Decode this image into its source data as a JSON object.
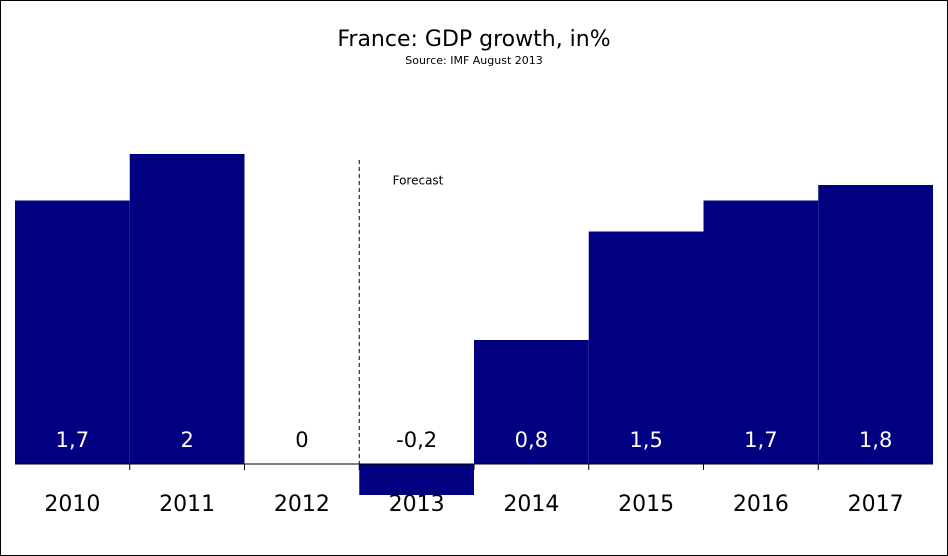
{
  "chart_data": {
    "type": "bar",
    "title": "France: GDP growth, in%",
    "subtitle": "Source: IMF  August 2013",
    "annotation": "Forecast",
    "categories": [
      "2010",
      "2011",
      "2012",
      "2013",
      "2014",
      "2015",
      "2016",
      "2017"
    ],
    "values": [
      1.7,
      2,
      0,
      -0.2,
      0.8,
      1.5,
      1.7,
      1.8
    ],
    "value_labels": [
      "1,7",
      "2",
      "0",
      "-0,2",
      "0,8",
      "1,5",
      "1,7",
      "1,8"
    ],
    "color": "#000080"
  }
}
